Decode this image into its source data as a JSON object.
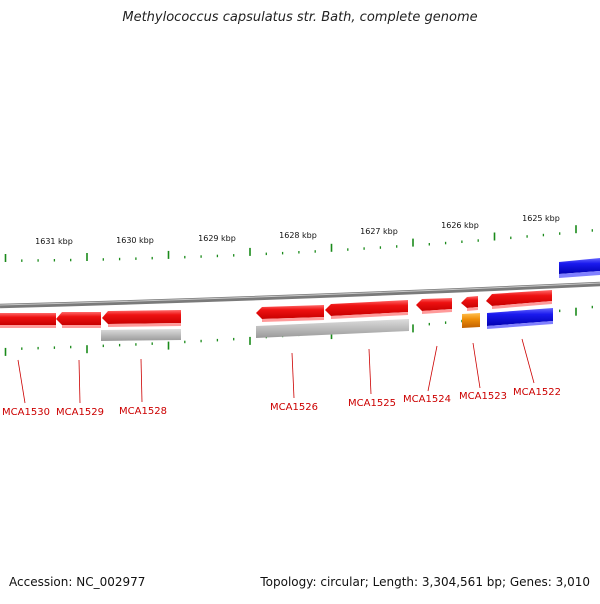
{
  "title": "Methylococcus capsulatus str. Bath, complete genome",
  "footer": {
    "accession": "Accession: NC_002977",
    "topology": "Topology: circular; Length: 3,304,561 bp; Genes: 3,010"
  },
  "colors": {
    "forward_gene": "#e8000b",
    "reverse_gene": "#ee1111",
    "rna_or_other": "#1a1aee",
    "orange_feature": "#f0900a",
    "gray_feature": "#bbbbbb",
    "backbone": "#888888",
    "tick": "#1a8a1a",
    "label": "#cc0000"
  },
  "ruler": {
    "labels": [
      "1631 kbp",
      "1630 kbp",
      "1629 kbp",
      "1628 kbp",
      "1627 kbp",
      "1626 kbp",
      "1625 kbp"
    ]
  },
  "gene_labels": [
    "MCA1530",
    "MCA1529",
    "MCA1528",
    "MCA1526",
    "MCA1525",
    "MCA1524",
    "MCA1523",
    "MCA1522"
  ]
}
